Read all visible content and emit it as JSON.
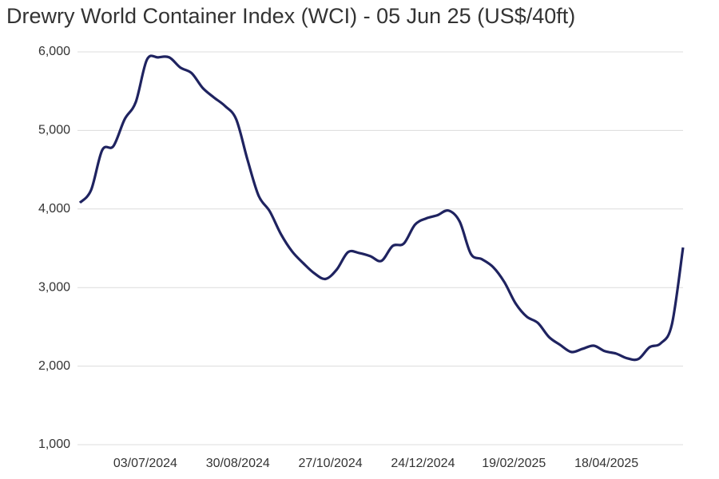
{
  "chart_data": {
    "type": "line",
    "title": "Drewry World Container Index (WCI) - 05 Jun 25 (US$/40ft)",
    "x": [
      "23/05/2024",
      "30/05/2024",
      "06/06/2024",
      "13/06/2024",
      "20/06/2024",
      "27/06/2024",
      "04/07/2024",
      "11/07/2024",
      "18/07/2024",
      "25/07/2024",
      "01/08/2024",
      "08/08/2024",
      "15/08/2024",
      "22/08/2024",
      "29/08/2024",
      "05/09/2024",
      "12/09/2024",
      "19/09/2024",
      "26/09/2024",
      "03/10/2024",
      "10/10/2024",
      "17/10/2024",
      "24/10/2024",
      "31/10/2024",
      "07/11/2024",
      "14/11/2024",
      "21/11/2024",
      "28/11/2024",
      "05/12/2024",
      "12/12/2024",
      "19/12/2024",
      "26/12/2024",
      "02/01/2025",
      "09/01/2025",
      "16/01/2025",
      "23/01/2025",
      "30/01/2025",
      "06/02/2025",
      "13/02/2025",
      "20/02/2025",
      "27/02/2025",
      "06/03/2025",
      "13/03/2025",
      "20/03/2025",
      "27/03/2025",
      "03/04/2025",
      "10/04/2025",
      "17/04/2025",
      "24/04/2025",
      "01/05/2025",
      "08/05/2025",
      "15/05/2025",
      "22/05/2025",
      "29/05/2025",
      "05/06/2025"
    ],
    "series": [
      {
        "color": "#1f2360",
        "values": [
          4080,
          4240,
          4750,
          4800,
          5140,
          5360,
          5900,
          5930,
          5930,
          5800,
          5730,
          5540,
          5420,
          5310,
          5140,
          4630,
          4170,
          3970,
          3680,
          3460,
          3310,
          3180,
          3110,
          3230,
          3450,
          3440,
          3400,
          3340,
          3530,
          3560,
          3800,
          3880,
          3920,
          3980,
          3840,
          3430,
          3360,
          3260,
          3070,
          2800,
          2630,
          2550,
          2370,
          2270,
          2180,
          2220,
          2260,
          2190,
          2160,
          2100,
          2090,
          2240,
          2290,
          2530,
          3510
        ]
      }
    ],
    "xlim": [
      "23/05/2024",
      "05/06/2025"
    ],
    "xticks": [
      "03/07/2024",
      "30/08/2024",
      "27/10/2024",
      "24/12/2024",
      "19/02/2025",
      "18/04/2025"
    ],
    "ylim": [
      1000,
      6000
    ],
    "yticks": [
      {
        "value": 1000,
        "label": "1,000"
      },
      {
        "value": 2000,
        "label": "2,000"
      },
      {
        "value": 3000,
        "label": "3,000"
      },
      {
        "value": 4000,
        "label": "4,000"
      },
      {
        "value": 5000,
        "label": "5,000"
      },
      {
        "value": 6000,
        "label": "6,000"
      }
    ],
    "grid": true
  }
}
